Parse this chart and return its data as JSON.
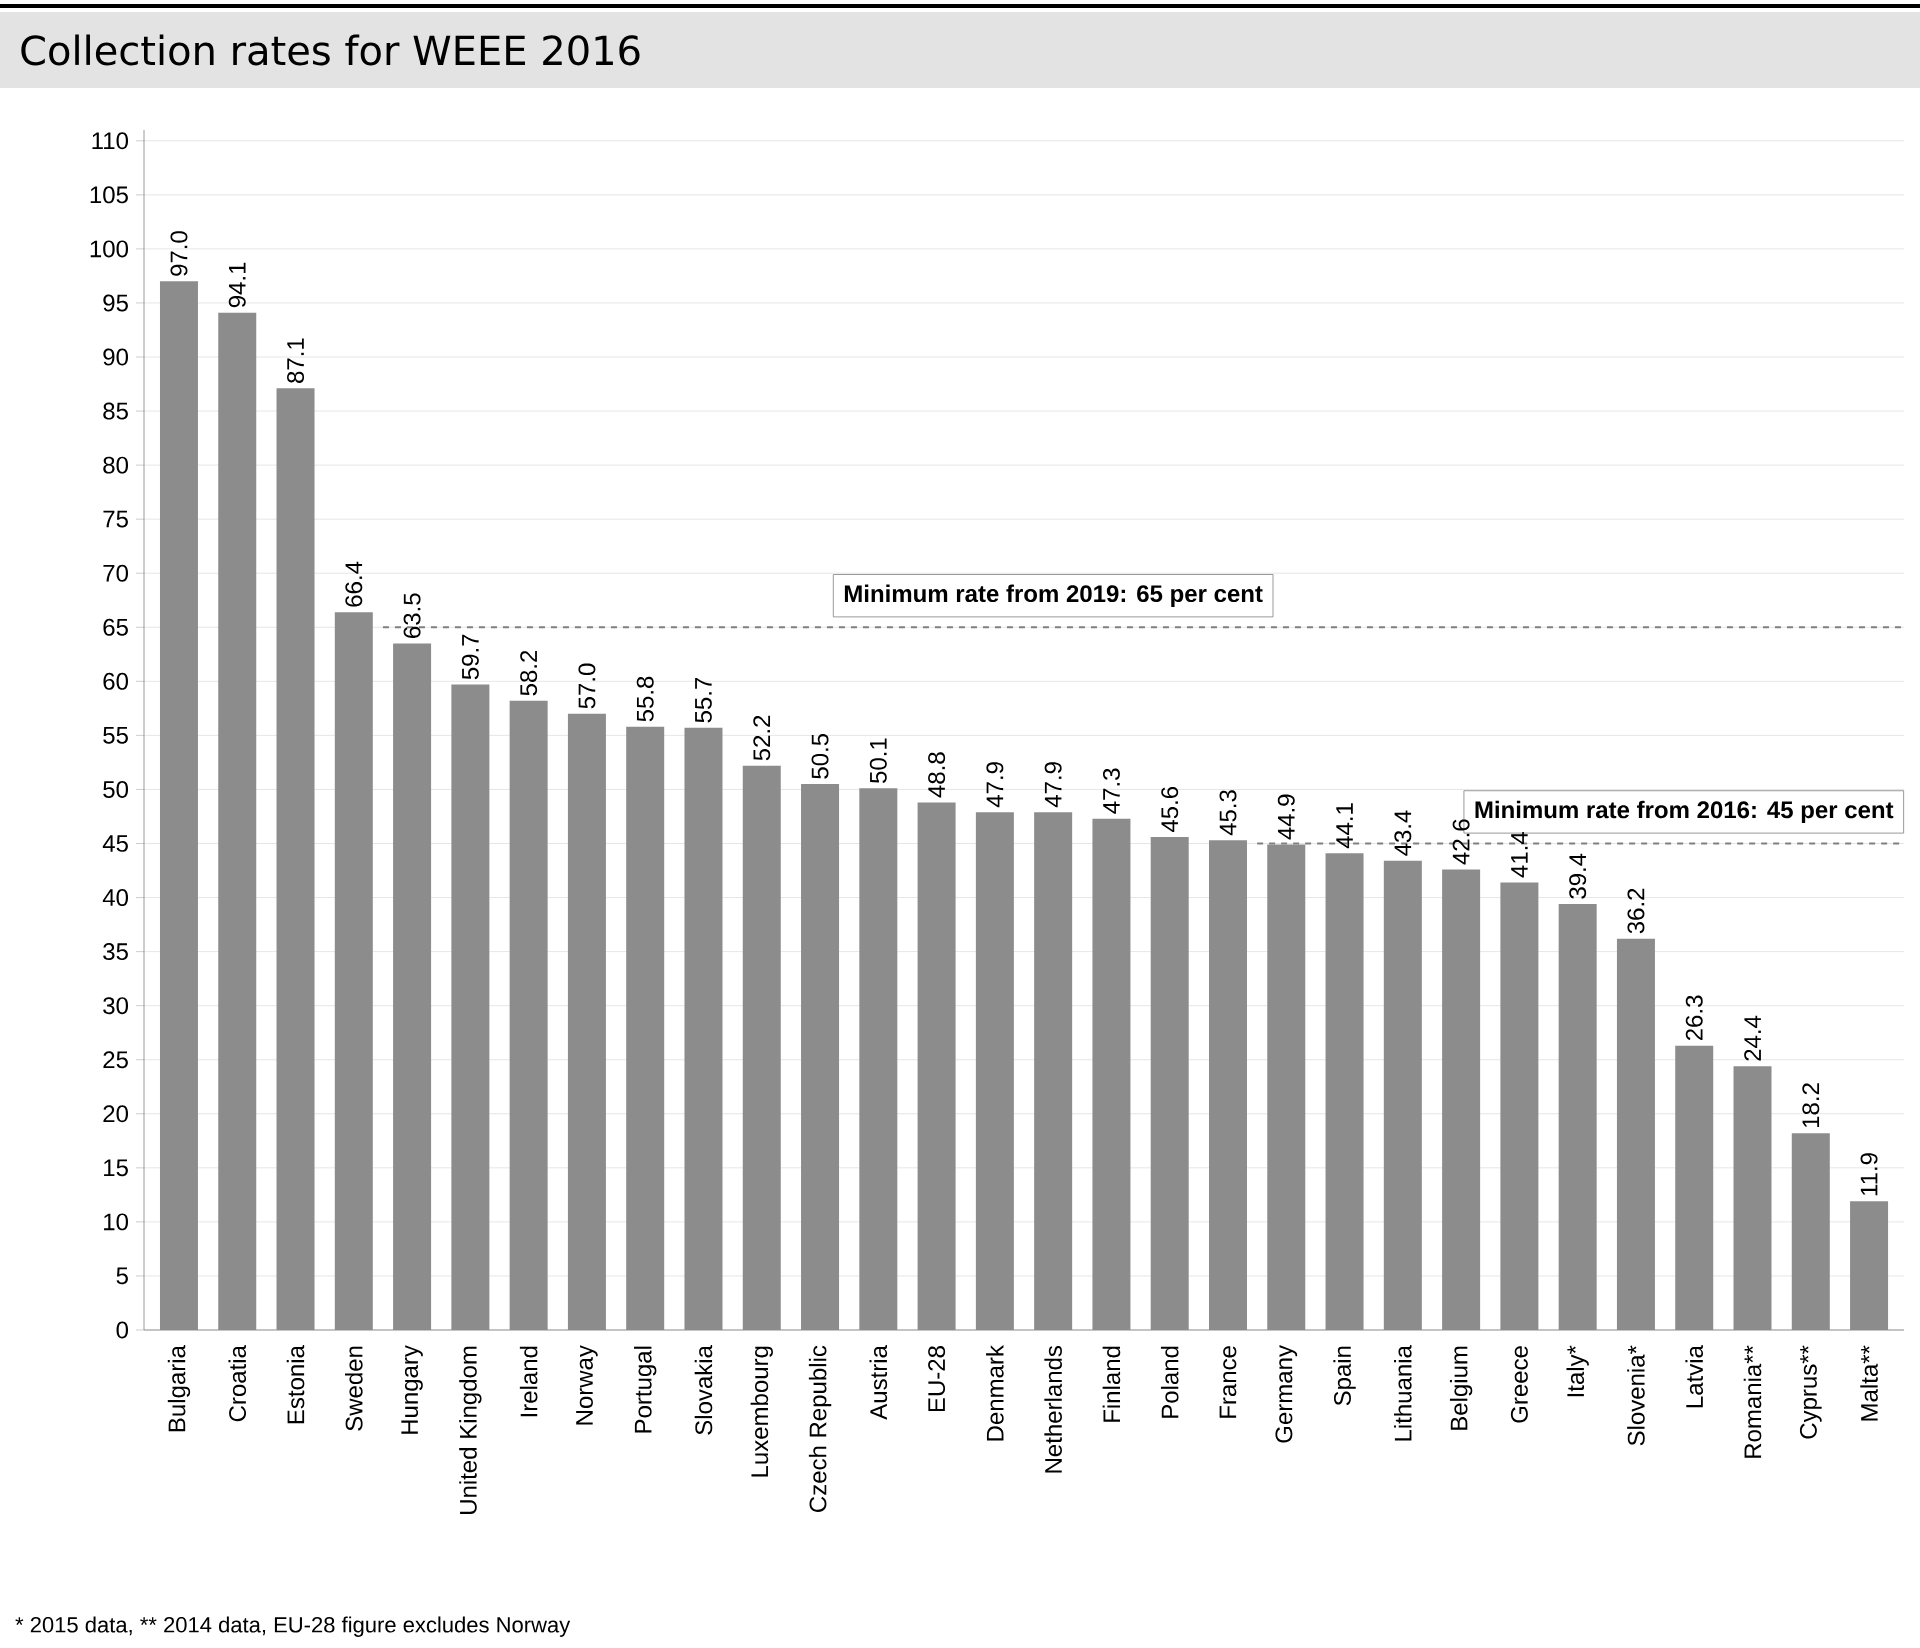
{
  "chart_data": {
    "type": "bar",
    "title": "Collection rates for WEEE  2016",
    "categories": [
      "Bulgaria",
      "Croatia",
      "Estonia",
      "Sweden",
      "Hungary",
      "United Kingdom",
      "Ireland",
      "Norway",
      "Portugal",
      "Slovakia",
      "Luxembourg",
      "Czech Republic",
      "Austria",
      "EU-28",
      "Denmark",
      "Netherlands",
      "Finland",
      "Poland",
      "France",
      "Germany",
      "Spain",
      "Lithuania",
      "Belgium",
      "Greece",
      "Italy*",
      "Slovenia*",
      "Latvia",
      "Romania**",
      "Cyprus**",
      "Malta**"
    ],
    "values": [
      97.0,
      94.1,
      87.1,
      66.4,
      63.5,
      59.7,
      58.2,
      57.0,
      55.8,
      55.7,
      52.2,
      50.5,
      50.1,
      48.8,
      47.9,
      47.9,
      47.3,
      45.6,
      45.3,
      44.9,
      44.1,
      43.4,
      42.6,
      41.4,
      39.4,
      36.2,
      26.3,
      24.4,
      18.2,
      11.9
    ],
    "value_labels": [
      "97.0",
      "94.1",
      "87.1",
      "66.4",
      "63.5",
      "59.7",
      "58.2",
      "57.0",
      "55.8",
      "55.7",
      "52.2",
      "50.5",
      "50.1",
      "48.8",
      "47.9",
      "47.9",
      "47.3",
      "45.6",
      "45.3",
      "44.9",
      "44.1",
      "43.4",
      "42.6",
      "41.4",
      "39.4",
      "36.2",
      "26.3",
      "24.4",
      "18.2",
      "11.9"
    ],
    "color": "#8c8c8c",
    "ylim": [
      0,
      111
    ],
    "yticks": [
      0,
      5,
      10,
      15,
      20,
      25,
      30,
      35,
      40,
      45,
      50,
      55,
      60,
      65,
      70,
      75,
      80,
      85,
      90,
      95,
      100,
      105,
      110
    ],
    "grid": "y",
    "ref_lines": [
      {
        "axis": "y",
        "value": 65,
        "label": "Minimum rate from 2019: 65 per cent",
        "line_style": "dashed",
        "color": "#808080"
      },
      {
        "axis": "y",
        "value": 45,
        "label": "Minimum rate from 2016: 45 per cent",
        "line_style": "dashed",
        "color": "#808080"
      }
    ],
    "annotations": [
      "* 2015 data,   ** 2014 data,   EU-28 figure excludes Norway"
    ]
  }
}
